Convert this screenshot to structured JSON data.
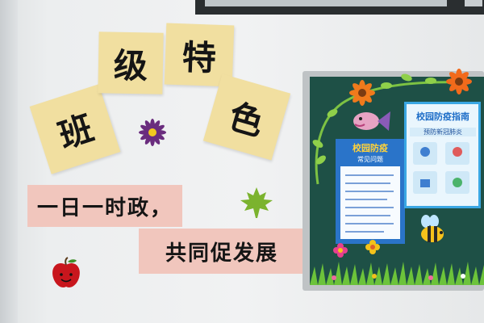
{
  "scene": {
    "title_tiles": [
      "班",
      "级",
      "特",
      "色"
    ],
    "slogan_line_1": "一日一时政，",
    "slogan_line_2": "共同促发展",
    "bulletin_board": {
      "poster_left_title": "校园防疫",
      "poster_left_subtitle": "常见问题",
      "poster_right_title": "校园防疫指南",
      "poster_right_subtitle": "预防新冠肺炎"
    }
  },
  "colors": {
    "tile_yellow": "#f1dfa0",
    "strip_pink": "#f1c6bd",
    "board_green": "#1e5046"
  }
}
